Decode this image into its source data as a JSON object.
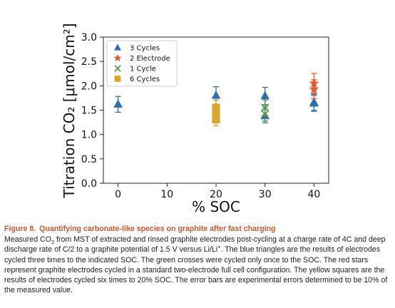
{
  "chart_data": {
    "type": "scatter",
    "xlabel": "% SOC",
    "ylabel": "Titration CO₂ [μmol/cm²]",
    "xlim": [
      -3,
      43
    ],
    "ylim": [
      0.0,
      3.0
    ],
    "xticks": [
      0,
      10,
      20,
      30,
      40
    ],
    "yticks": [
      0.0,
      0.5,
      1.0,
      1.5,
      2.0,
      2.5,
      3.0
    ],
    "error": "10% of the measured value",
    "legend_position": "top-left",
    "series": [
      {
        "name": "3 Cycles",
        "marker": "triangle",
        "color": "#2e6fad",
        "points": [
          [
            0,
            1.62
          ],
          [
            20,
            1.8
          ],
          [
            30,
            1.79
          ],
          [
            30,
            1.38
          ],
          [
            40,
            1.66
          ],
          [
            40,
            1.64
          ]
        ]
      },
      {
        "name": "2 Electrode",
        "marker": "star",
        "color": "#e8582a",
        "points": [
          [
            40,
            2.05
          ],
          [
            40,
            1.93
          ]
        ]
      },
      {
        "name": "1 Cycle",
        "marker": "x",
        "color": "#4f9a3c",
        "points": [
          [
            30,
            1.55
          ],
          [
            30,
            1.42
          ]
        ]
      },
      {
        "name": "6 Cycles",
        "marker": "square",
        "color": "#d9a72f",
        "points": [
          [
            20,
            1.55
          ],
          [
            20,
            1.44
          ],
          [
            20,
            1.31
          ]
        ]
      }
    ]
  },
  "caption": {
    "figure_number": "Figure 8.",
    "title": "Quantifying carbonate-like species on graphite after fast charging",
    "s1": "Measured CO",
    "s1_sub": "2",
    "s2": " from MST of extracted and rinsed graphite electrodes post-cycling at a charge rate of 4C and deep discharge rate of C/2 to a graphite potential of 1.5 V versus Li/Li",
    "s2_sup": "+",
    "s3": ". The blue triangles are the results of electrodes cycled three times to the indicated SOC. The green crosses were cycled only once to the SOC. The red stars represent graphite electrodes cycled in a standard two-electrode full cell configuration. The yellow squares are the results of electrodes cycled six times to 20% SOC. The error bars are experimental errors determined to be 10% of the measured value."
  }
}
